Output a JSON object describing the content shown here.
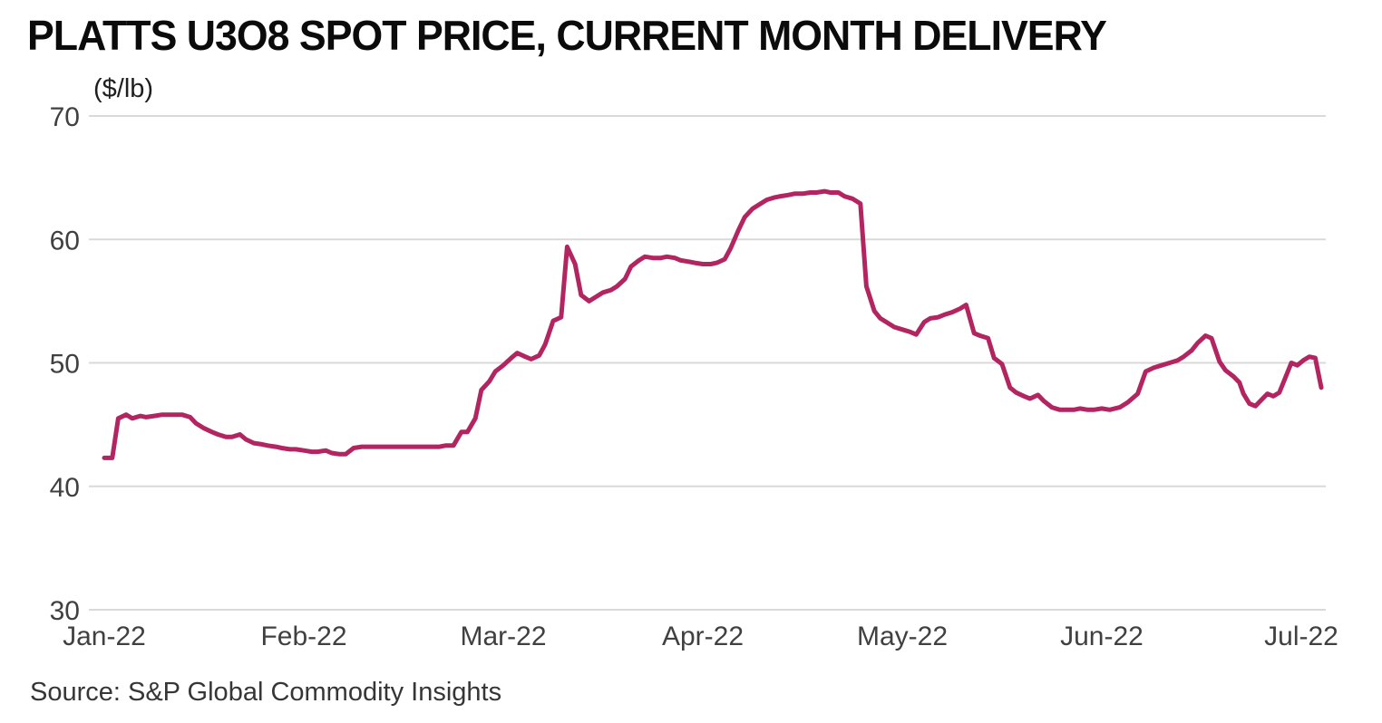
{
  "header": {
    "title": "PLATTS U3O8 SPOT PRICE, CURRENT MONTH DELIVERY"
  },
  "footer": {
    "source": "Source: S&P Global Commodity Insights"
  },
  "chart_data": {
    "type": "line",
    "title": "PLATTS U3O8 SPOT PRICE, CURRENT MONTH DELIVERY",
    "unit_label": "($/lb)",
    "xlabel": "",
    "ylabel": "($/lb)",
    "x_tick_labels": [
      "Jan-22",
      "Feb-22",
      "Mar-22",
      "Apr-22",
      "May-22",
      "Jun-22",
      "Jul-22"
    ],
    "y_ticks": [
      30,
      40,
      50,
      60,
      70
    ],
    "ylim": [
      30,
      70
    ],
    "xlim": [
      0,
      6.12
    ],
    "grid": "horizontal",
    "legend_position": "none",
    "line_color": "#b22561",
    "gridline_color": "#d9d9d9",
    "tick_label_color": "#404040",
    "series": [
      {
        "name": "Platts U3O8 spot price, current month delivery ($/lb)",
        "x": [
          0.0,
          0.04,
          0.07,
          0.11,
          0.14,
          0.18,
          0.21,
          0.25,
          0.29,
          0.32,
          0.36,
          0.39,
          0.43,
          0.46,
          0.5,
          0.54,
          0.57,
          0.61,
          0.64,
          0.68,
          0.71,
          0.75,
          0.79,
          0.82,
          0.86,
          0.89,
          0.93,
          0.96,
          1.0,
          1.04,
          1.07,
          1.11,
          1.14,
          1.18,
          1.21,
          1.25,
          1.29,
          1.32,
          1.36,
          1.39,
          1.43,
          1.46,
          1.5,
          1.54,
          1.57,
          1.61,
          1.64,
          1.68,
          1.71,
          1.75,
          1.79,
          1.82,
          1.86,
          1.89,
          1.93,
          1.96,
          2.0,
          2.04,
          2.07,
          2.11,
          2.14,
          2.18,
          2.21,
          2.25,
          2.29,
          2.32,
          2.36,
          2.39,
          2.43,
          2.46,
          2.5,
          2.54,
          2.57,
          2.61,
          2.64,
          2.68,
          2.71,
          2.75,
          2.79,
          2.82,
          2.86,
          2.89,
          2.93,
          2.96,
          3.0,
          3.04,
          3.07,
          3.11,
          3.14,
          3.18,
          3.21,
          3.25,
          3.29,
          3.32,
          3.36,
          3.39,
          3.43,
          3.46,
          3.5,
          3.54,
          3.57,
          3.61,
          3.64,
          3.68,
          3.71,
          3.75,
          3.79,
          3.82,
          3.86,
          3.89,
          3.93,
          3.96,
          4.0,
          4.04,
          4.07,
          4.11,
          4.14,
          4.18,
          4.21,
          4.25,
          4.29,
          4.32,
          4.36,
          4.39,
          4.43,
          4.46,
          4.5,
          4.54,
          4.57,
          4.61,
          4.64,
          4.68,
          4.71,
          4.75,
          4.79,
          4.82,
          4.86,
          4.89,
          4.93,
          4.96,
          5.0,
          5.04,
          5.09,
          5.13,
          5.18,
          5.22,
          5.26,
          5.3,
          5.34,
          5.38,
          5.41,
          5.45,
          5.48,
          5.52,
          5.55,
          5.59,
          5.62,
          5.66,
          5.69,
          5.71,
          5.74,
          5.77,
          5.8,
          5.83,
          5.86,
          5.89,
          5.92,
          5.95,
          5.98,
          6.01,
          6.04,
          6.07,
          6.1
        ],
        "y": [
          42.3,
          42.3,
          45.5,
          45.8,
          45.5,
          45.7,
          45.6,
          45.7,
          45.8,
          45.8,
          45.8,
          45.8,
          45.6,
          45.1,
          44.7,
          44.4,
          44.2,
          44.0,
          44.0,
          44.2,
          43.8,
          43.5,
          43.4,
          43.3,
          43.2,
          43.1,
          43.0,
          43.0,
          42.9,
          42.8,
          42.8,
          42.9,
          42.7,
          42.6,
          42.6,
          43.1,
          43.2,
          43.2,
          43.2,
          43.2,
          43.2,
          43.2,
          43.2,
          43.2,
          43.2,
          43.2,
          43.2,
          43.2,
          43.3,
          43.3,
          44.4,
          44.4,
          45.5,
          47.8,
          48.5,
          49.3,
          49.8,
          50.4,
          50.8,
          50.5,
          50.3,
          50.6,
          51.5,
          53.4,
          53.7,
          59.4,
          58.0,
          55.5,
          55.0,
          55.3,
          55.7,
          55.9,
          56.2,
          56.8,
          57.8,
          58.3,
          58.6,
          58.5,
          58.5,
          58.6,
          58.5,
          58.3,
          58.2,
          58.1,
          58.0,
          58.0,
          58.1,
          58.4,
          59.3,
          60.8,
          61.8,
          62.5,
          62.9,
          63.2,
          63.4,
          63.5,
          63.6,
          63.7,
          63.7,
          63.8,
          63.8,
          63.9,
          63.8,
          63.8,
          63.5,
          63.3,
          62.9,
          56.2,
          54.2,
          53.6,
          53.2,
          52.9,
          52.7,
          52.5,
          52.3,
          53.3,
          53.6,
          53.7,
          53.9,
          54.1,
          54.4,
          54.7,
          52.4,
          52.2,
          52.0,
          50.4,
          49.9,
          48.0,
          47.6,
          47.3,
          47.1,
          47.4,
          46.9,
          46.4,
          46.2,
          46.2,
          46.2,
          46.3,
          46.2,
          46.2,
          46.3,
          46.2,
          46.4,
          46.8,
          47.5,
          49.3,
          49.6,
          49.8,
          50.0,
          50.2,
          50.5,
          51.0,
          51.6,
          52.2,
          52.0,
          50.1,
          49.4,
          48.9,
          48.4,
          47.5,
          46.7,
          46.5,
          47.0,
          47.5,
          47.3,
          47.6,
          48.8,
          50.0,
          49.8,
          50.2,
          50.5,
          50.4,
          48.0
        ]
      }
    ]
  }
}
